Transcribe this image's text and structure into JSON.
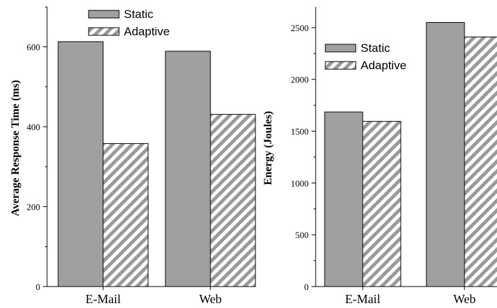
{
  "chart_data": [
    {
      "type": "bar",
      "categories": [
        "E-Mail",
        "Web"
      ],
      "series": [
        {
          "name": "Static",
          "values": [
            613,
            589
          ]
        },
        {
          "name": "Adaptive",
          "values": [
            358,
            431
          ]
        }
      ],
      "ylabel": "Average Response Time (ms)",
      "xlabel": "",
      "ylim": [
        0,
        700
      ],
      "yticks": [
        0,
        200,
        400,
        600
      ],
      "legend": "top-right",
      "grid": false
    },
    {
      "type": "bar",
      "categories": [
        "E-Mail",
        "Web"
      ],
      "series": [
        {
          "name": "Static",
          "values": [
            1685,
            2550
          ]
        },
        {
          "name": "Adaptive",
          "values": [
            1595,
            2410
          ]
        }
      ],
      "ylabel": "Energy (Joules)",
      "xlabel": "",
      "ylim": [
        0,
        2700
      ],
      "yticks": [
        0,
        500,
        1000,
        1500,
        2000,
        2500
      ],
      "legend": "top-left",
      "grid": false
    }
  ],
  "colors": {
    "static_fill": "#a0a0a0",
    "adaptive_stripe": "#9a9a9a",
    "adaptive_bg": "#ffffff"
  }
}
